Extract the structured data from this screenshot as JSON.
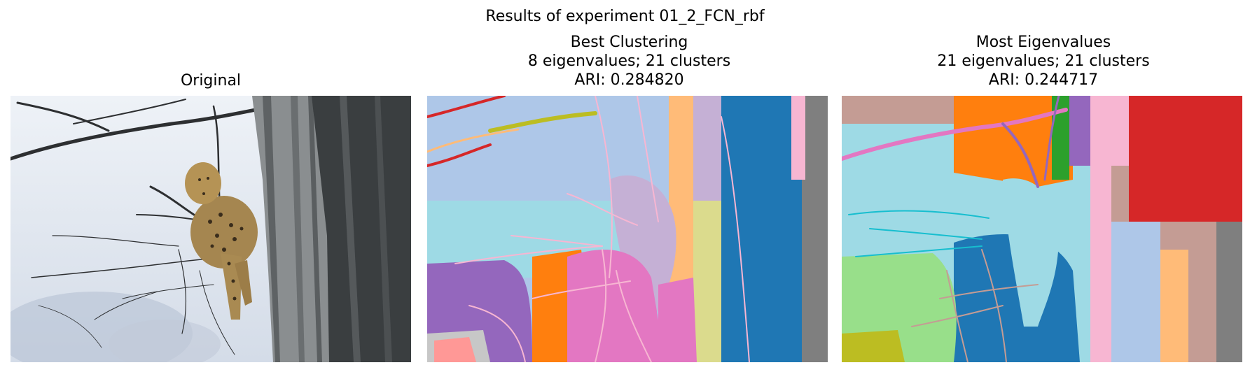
{
  "figure": {
    "title": "Results of experiment 01_2_FCN_rbf"
  },
  "panels": [
    {
      "title_lines": [
        "Original"
      ]
    },
    {
      "title_lines": [
        "Best Clustering",
        "8 eigenvalues; 21 clusters",
        "ARI: 0.284820"
      ]
    },
    {
      "title_lines": [
        "Most Eigenvalues",
        "21 eigenvalues; 21 clusters",
        "ARI: 0.244717"
      ]
    }
  ],
  "colors": {
    "sky": "#e8eef5",
    "bark_light": "#8e9294",
    "bark_dark": "#3b3f40",
    "leopard": "#b08d4e",
    "c_lightblue": "#aec7e8",
    "c_cyan": "#9edae5",
    "c_orange": "#ff7f0e",
    "c_lightorange": "#ffbb78",
    "c_pink": "#e377c2",
    "c_lightpink": "#f7b6d2",
    "c_purple": "#9467bd",
    "c_lavender": "#c5b0d5",
    "c_blue": "#1f77b4",
    "c_gray": "#7f7f7f",
    "c_lightgray": "#c7c7c7",
    "c_olive": "#bcbd22",
    "c_khaki": "#dbdb8d",
    "c_red": "#d62728",
    "c_salmon": "#ff9896",
    "c_tan": "#c49c94",
    "c_brown": "#8c564b",
    "c_green": "#2ca02c",
    "c_lightgreen": "#98df8a",
    "c_teal": "#17becf"
  }
}
